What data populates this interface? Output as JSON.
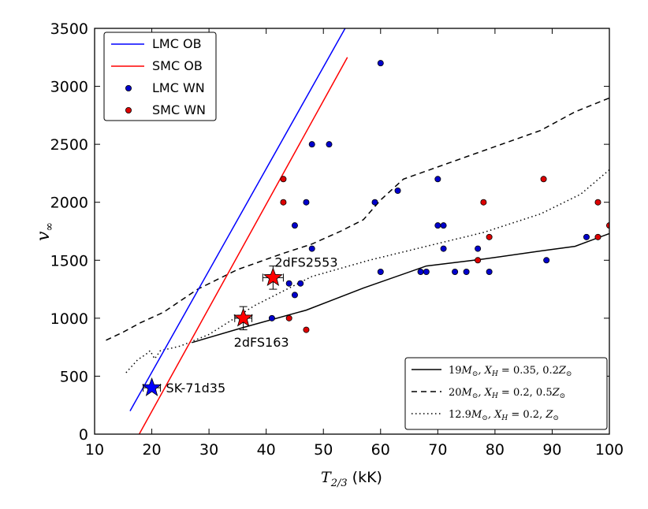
{
  "chart_data": {
    "type": "scatter",
    "title": "",
    "xlabel": "T2/3 (kK)",
    "xlabel_main": "T",
    "xlabel_sub": "2/3",
    "xlabel_unit": " (kK)",
    "ylabel": "v∞",
    "ylabel_main": "v",
    "ylabel_sub": "∞",
    "xlim": [
      10,
      100
    ],
    "ylim": [
      0,
      3500
    ],
    "xticks": [
      10,
      20,
      30,
      40,
      50,
      60,
      70,
      80,
      90,
      100
    ],
    "yticks": [
      0,
      500,
      1000,
      1500,
      2000,
      2500,
      3000,
      3500
    ],
    "grid": false,
    "colors": {
      "lmc": "#0000cc",
      "smc": "#dd0000",
      "lmc_line": "#0000ff",
      "smc_line": "#ff0000",
      "model": "#000000"
    },
    "lines": [
      {
        "name": "LMC OB",
        "color": "#0000ff",
        "x": [
          16.2,
          53.8
        ],
        "y": [
          200,
          3500
        ]
      },
      {
        "name": "SMC OB",
        "color": "#ff0000",
        "x": [
          17.8,
          54.2
        ],
        "y": [
          0,
          3250
        ]
      }
    ],
    "scatter": [
      {
        "name": "LMC WN",
        "color": "#0000cc",
        "points": [
          [
            60,
            3200
          ],
          [
            48,
            2500
          ],
          [
            51,
            2500
          ],
          [
            70,
            2200
          ],
          [
            63,
            2100
          ],
          [
            47,
            2000
          ],
          [
            59,
            2000
          ],
          [
            45,
            1800
          ],
          [
            70,
            1800
          ],
          [
            71,
            1800
          ],
          [
            48,
            1600
          ],
          [
            71,
            1600
          ],
          [
            77,
            1600
          ],
          [
            96,
            1700
          ],
          [
            89,
            1500
          ],
          [
            44,
            1300
          ],
          [
            46,
            1300
          ],
          [
            45,
            1200
          ],
          [
            60,
            1400
          ],
          [
            67,
            1400
          ],
          [
            68,
            1400
          ],
          [
            73,
            1400
          ],
          [
            75,
            1400
          ],
          [
            79,
            1400
          ],
          [
            41,
            1000
          ]
        ]
      },
      {
        "name": "SMC WN",
        "color": "#dd0000",
        "points": [
          [
            43,
            2200
          ],
          [
            43,
            2000
          ],
          [
            88.5,
            2200
          ],
          [
            78,
            2000
          ],
          [
            98,
            2000
          ],
          [
            79,
            1700
          ],
          [
            98,
            1700
          ],
          [
            100,
            1800
          ],
          [
            77,
            1500
          ],
          [
            44,
            1000
          ],
          [
            47,
            900
          ]
        ]
      }
    ],
    "stars": [
      {
        "label": "SK-71d35",
        "x": 20,
        "y": 400,
        "xerr": 1.5,
        "yerr": 0,
        "color": "#0000ff"
      },
      {
        "label": "2dFS163",
        "x": 36,
        "y": 1000,
        "xerr": 1.5,
        "yerr": 100,
        "color": "#ff0000"
      },
      {
        "label": "2dFS2553",
        "x": 41.2,
        "y": 1350,
        "xerr": 1.8,
        "yerr": 100,
        "color": "#ff0000"
      }
    ],
    "models": [
      {
        "name": "19M⊙, XH = 0.35, 0.2Z⊙",
        "style": "solid",
        "x": [
          27,
          36,
          47,
          57,
          68,
          78,
          88,
          94,
          100
        ],
        "y": [
          790,
          920,
          1070,
          1260,
          1450,
          1510,
          1580,
          1620,
          1730
        ]
      },
      {
        "name": "20M⊙, XH = 0.2, 0.5Z⊙",
        "style": "dashed",
        "x": [
          12,
          15,
          18,
          22,
          28,
          35,
          43,
          48,
          53,
          57,
          60,
          64,
          72,
          80,
          88,
          94,
          100
        ],
        "y": [
          810,
          880,
          960,
          1050,
          1250,
          1420,
          1560,
          1640,
          1750,
          1850,
          2020,
          2200,
          2340,
          2480,
          2620,
          2780,
          2900
        ]
      },
      {
        "name": "12.9M⊙, XH = 0.2, Z⊙",
        "style": "dotted",
        "x": [
          15.5,
          17.5,
          19,
          19.7,
          20.5,
          21.5,
          25,
          30,
          38,
          48,
          58,
          68,
          78,
          88,
          95,
          100
        ],
        "y": [
          530,
          640,
          690,
          720,
          650,
          720,
          760,
          860,
          1110,
          1360,
          1500,
          1620,
          1740,
          1900,
          2070,
          2280
        ]
      }
    ],
    "legend_upper": {
      "location": "upper-left",
      "entries": [
        "LMC OB",
        "SMC OB",
        "LMC WN",
        "SMC WN"
      ]
    },
    "legend_lower": {
      "location": "lower-right",
      "entries": [
        {
          "mass": "19",
          "xh": "0.35",
          "z": "0.2"
        },
        {
          "mass": "20",
          "xh": "0.2",
          "z": "0.5"
        },
        {
          "mass": "12.9",
          "xh": "0.2",
          "z": ""
        }
      ]
    }
  }
}
